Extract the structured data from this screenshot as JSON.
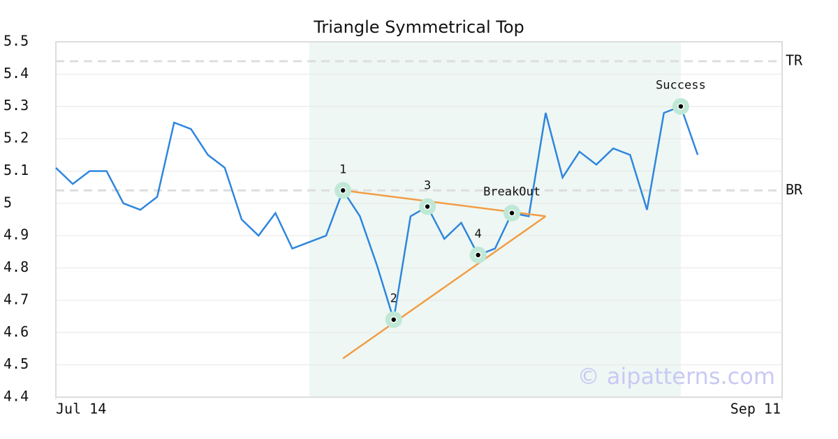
{
  "chart_data": {
    "type": "line",
    "title": "Triangle Symmetrical Top",
    "xlim": [
      0,
      43
    ],
    "xticks": [
      {
        "value": 0,
        "label": "Jul 14"
      },
      {
        "value": 43,
        "label": "Sep 11"
      }
    ],
    "ylim": [
      4.4,
      5.5
    ],
    "yticks": [
      4.4,
      4.5,
      4.6,
      4.7,
      4.8,
      4.9,
      5.0,
      5.1,
      5.2,
      5.3,
      5.4,
      5.5
    ],
    "grid": true,
    "series": [
      {
        "color": "#2e86de",
        "values": [
          5.11,
          5.06,
          5.1,
          5.1,
          5.0,
          4.98,
          5.02,
          5.25,
          5.23,
          5.15,
          5.11,
          4.95,
          4.9,
          4.97,
          4.86,
          4.88,
          4.9,
          5.04,
          4.96,
          4.81,
          4.64,
          4.96,
          4.99,
          4.89,
          4.94,
          4.84,
          4.86,
          4.97,
          4.96,
          5.28,
          5.08,
          5.16,
          5.12,
          5.17,
          5.15,
          4.98,
          5.28,
          5.3,
          5.15
        ]
      }
    ],
    "shaded_region": {
      "from": 15,
      "to": 37,
      "color": "#eef7f3"
    },
    "trend_lines": [
      {
        "color": "#f39c45",
        "x": [
          17,
          29
        ],
        "y": [
          5.04,
          4.96
        ]
      },
      {
        "color": "#f39c45",
        "x": [
          17,
          29
        ],
        "y": [
          4.52,
          4.96
        ]
      }
    ],
    "points": [
      {
        "label": "1",
        "x": 17,
        "y": 5.04
      },
      {
        "label": "2",
        "x": 20,
        "y": 4.64
      },
      {
        "label": "3",
        "x": 22,
        "y": 4.99
      },
      {
        "label": "4",
        "x": 25,
        "y": 4.84
      },
      {
        "label": "BreakOut",
        "x": 27,
        "y": 4.97
      },
      {
        "label": "Success",
        "x": 37,
        "y": 5.3
      }
    ],
    "levels": [
      {
        "label": "TR",
        "value": 5.44
      },
      {
        "label": "BR",
        "value": 5.04
      }
    ],
    "watermark": "© aipatterns.com"
  }
}
